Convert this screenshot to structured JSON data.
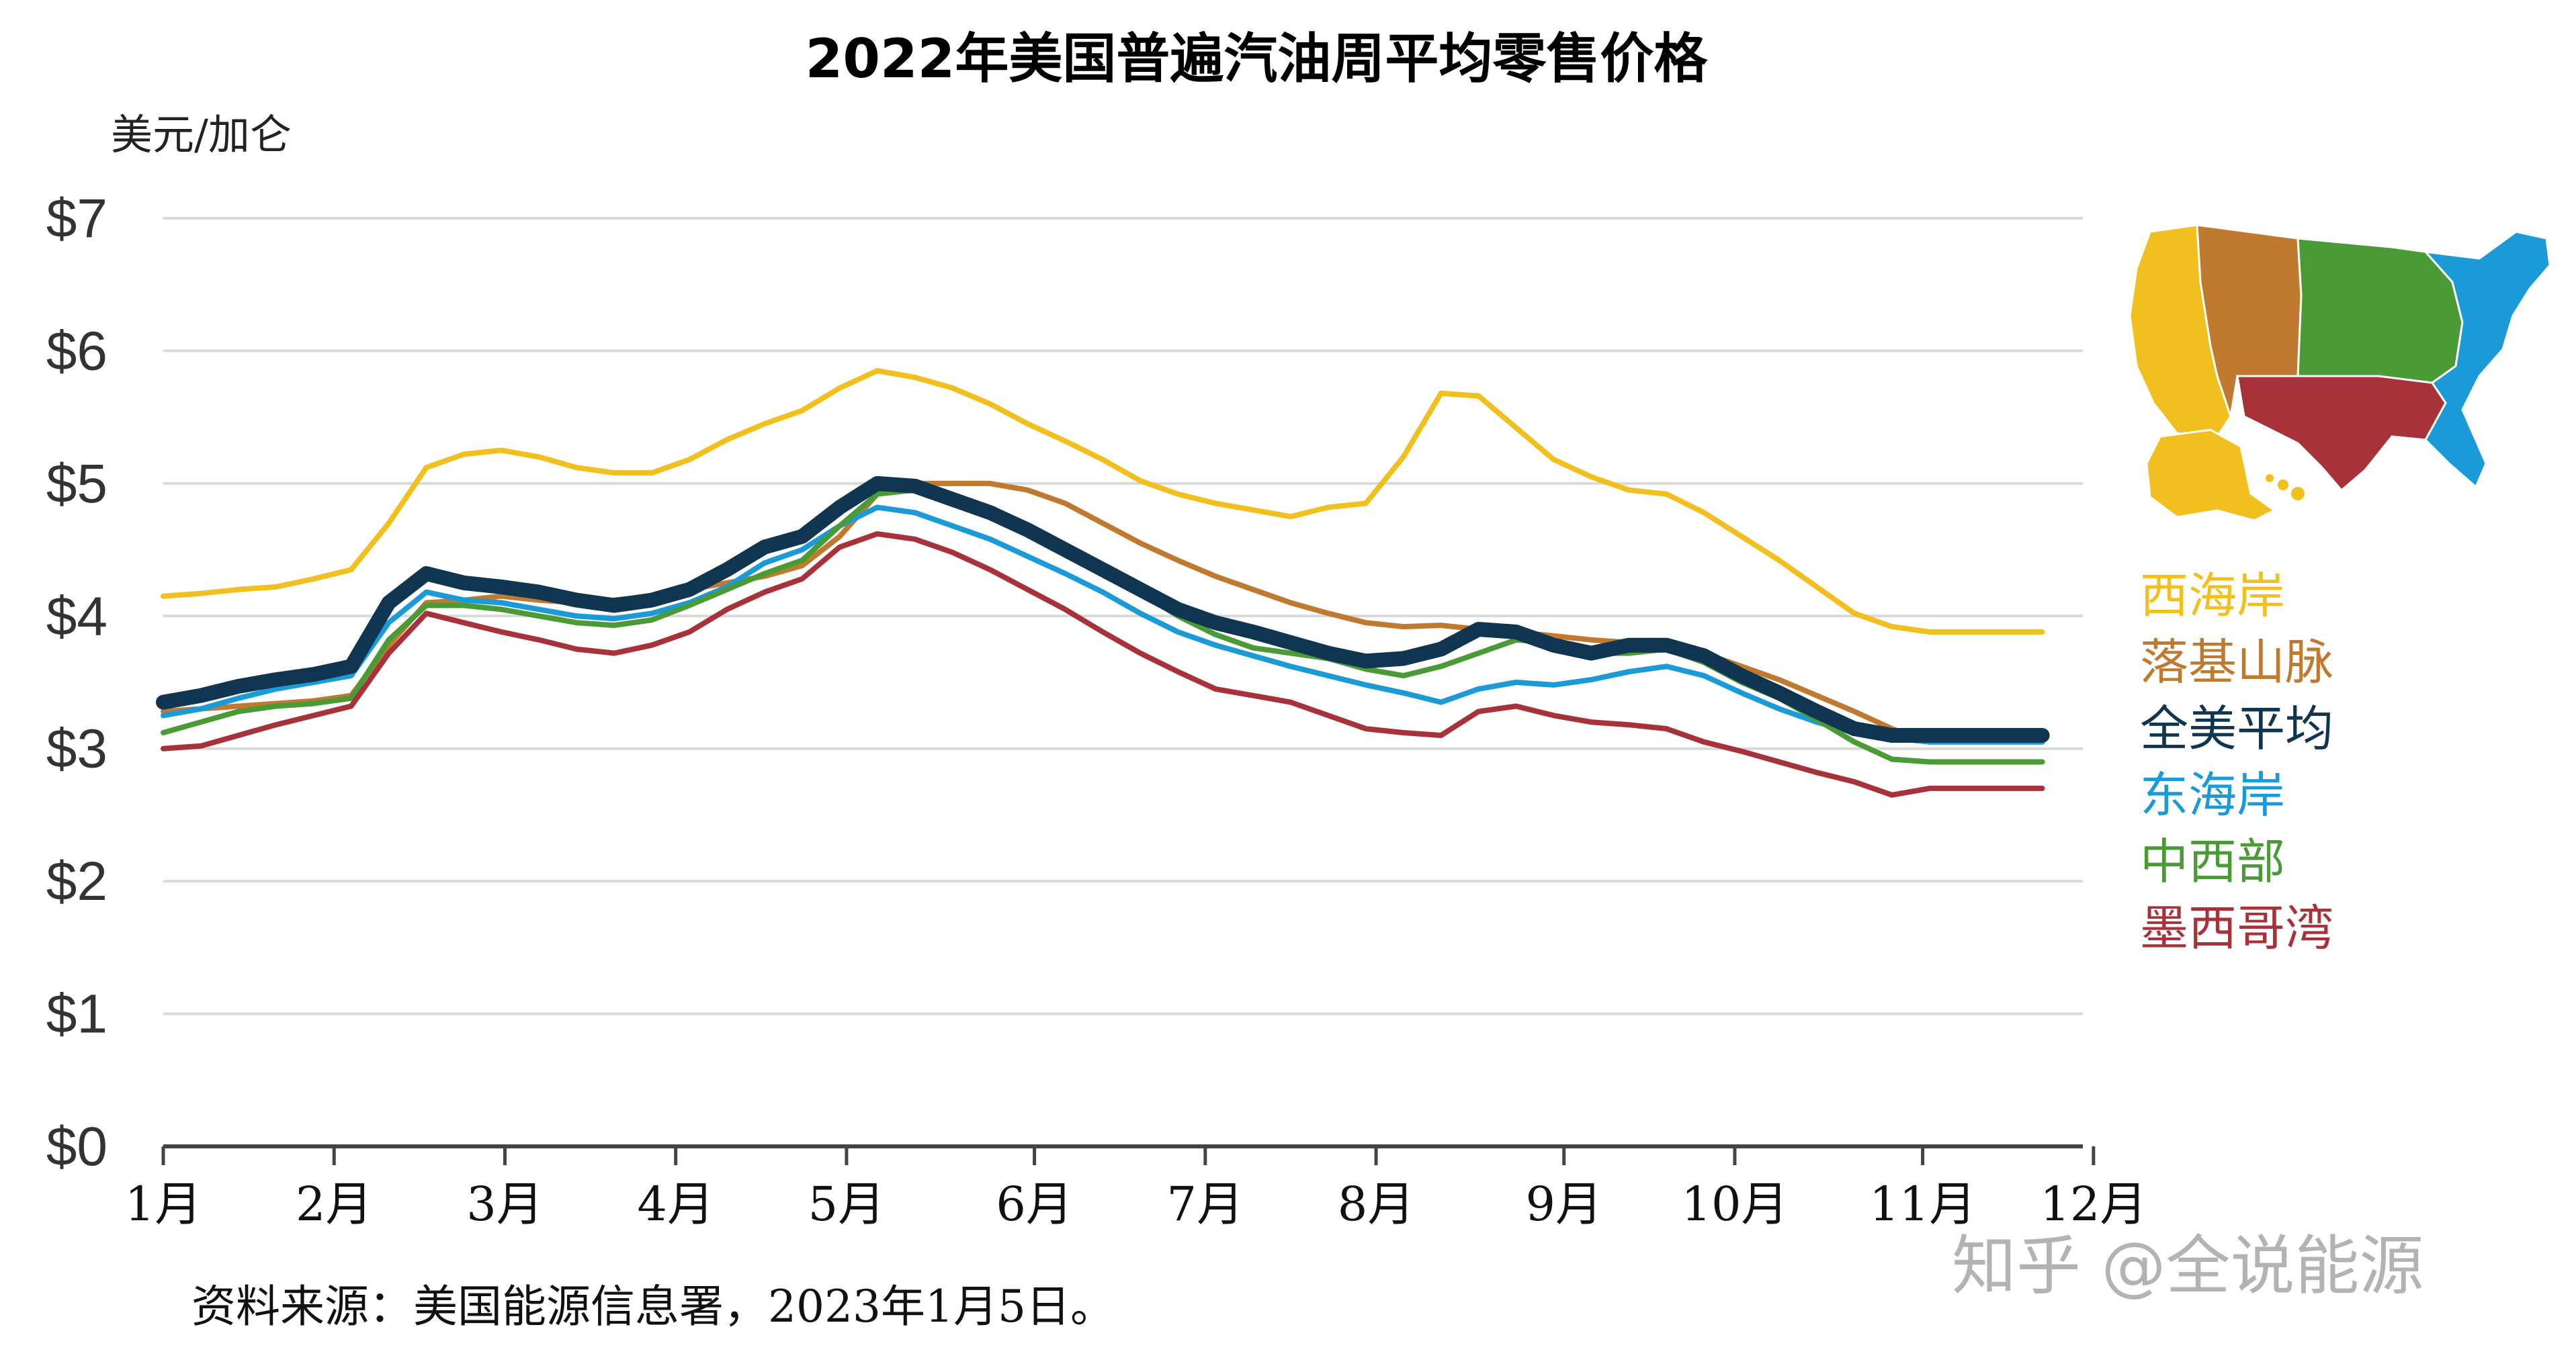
{
  "page": {
    "title": "2022年美国普遍汽油周平均零售价格",
    "unit_label": "美元/加仑",
    "source": "资料来源：美国能源信息署，2023年1月5日。",
    "watermark": "知乎 @全说能源"
  },
  "chart_data": {
    "type": "line",
    "title": "2022年美国普遍汽油周平均零售价格",
    "ylabel": "美元/加仑",
    "xlabel": "",
    "ylim": [
      0,
      7
    ],
    "xlim": [
      0,
      11.1
    ],
    "grid": true,
    "legend_position": "right",
    "yticks": [
      {
        "value": 0,
        "label": "$0"
      },
      {
        "value": 1,
        "label": "$1"
      },
      {
        "value": 2,
        "label": "$2"
      },
      {
        "value": 3,
        "label": "$3"
      },
      {
        "value": 4,
        "label": "$4"
      },
      {
        "value": 5,
        "label": "$5"
      },
      {
        "value": 6,
        "label": "$6"
      },
      {
        "value": 7,
        "label": "$7"
      }
    ],
    "xticks": [
      {
        "value": 0,
        "label": "1月"
      },
      {
        "value": 1,
        "label": "2月"
      },
      {
        "value": 2,
        "label": "3月"
      },
      {
        "value": 3,
        "label": "4月"
      },
      {
        "value": 4,
        "label": "5月"
      },
      {
        "value": 5.1,
        "label": "6月"
      },
      {
        "value": 6.1,
        "label": "7月"
      },
      {
        "value": 7.1,
        "label": "8月"
      },
      {
        "value": 8.2,
        "label": "9月"
      },
      {
        "value": 9.2,
        "label": "10月"
      },
      {
        "value": 10.3,
        "label": "11月"
      },
      {
        "value": 11.3,
        "label": "12月"
      }
    ],
    "x": [
      0,
      0.22,
      0.44,
      0.66,
      0.88,
      1.1,
      1.32,
      1.54,
      1.76,
      1.98,
      2.2,
      2.42,
      2.64,
      2.86,
      3.08,
      3.3,
      3.52,
      3.74,
      3.96,
      4.18,
      4.4,
      4.62,
      4.84,
      5.06,
      5.28,
      5.5,
      5.72,
      5.94,
      6.16,
      6.38,
      6.6,
      6.82,
      7.04,
      7.26,
      7.48,
      7.7,
      7.92,
      8.14,
      8.36,
      8.58,
      8.8,
      9.02,
      9.24,
      9.46,
      9.68,
      9.9,
      10.12,
      10.34,
      10.56,
      10.78,
      11.0
    ],
    "series": [
      {
        "name": "西海岸",
        "color": "#f2c01e",
        "width": 8,
        "values": [
          4.15,
          4.17,
          4.2,
          4.22,
          4.28,
          4.35,
          4.7,
          5.12,
          5.22,
          5.25,
          5.2,
          5.12,
          5.08,
          5.08,
          5.18,
          5.33,
          5.45,
          5.55,
          5.72,
          5.85,
          5.8,
          5.72,
          5.6,
          5.45,
          5.32,
          5.18,
          5.02,
          4.92,
          4.85,
          4.8,
          4.75,
          4.82,
          4.85,
          5.2,
          5.68,
          5.66,
          5.42,
          5.18,
          5.05,
          4.95,
          4.92,
          4.78,
          4.6,
          4.42,
          4.22,
          4.02,
          3.92,
          3.88,
          3.88,
          3.88,
          3.88
        ]
      },
      {
        "name": "落基山脉",
        "color": "#c07a30",
        "width": 8,
        "values": [
          3.28,
          3.3,
          3.32,
          3.34,
          3.36,
          3.4,
          3.78,
          4.1,
          4.12,
          4.15,
          4.12,
          4.1,
          4.12,
          4.15,
          4.2,
          4.25,
          4.3,
          4.38,
          4.6,
          4.92,
          5.0,
          5.0,
          5.0,
          4.95,
          4.85,
          4.7,
          4.55,
          4.42,
          4.3,
          4.2,
          4.1,
          4.02,
          3.95,
          3.92,
          3.93,
          3.9,
          3.88,
          3.85,
          3.82,
          3.8,
          3.78,
          3.72,
          3.62,
          3.52,
          3.4,
          3.28,
          3.15,
          3.05,
          3.05,
          3.05,
          3.05
        ]
      },
      {
        "name": "东海岸",
        "color": "#1a9ad6",
        "width": 8,
        "values": [
          3.25,
          3.3,
          3.38,
          3.45,
          3.5,
          3.55,
          3.95,
          4.18,
          4.12,
          4.1,
          4.05,
          4.0,
          3.98,
          4.02,
          4.1,
          4.22,
          4.4,
          4.5,
          4.68,
          4.82,
          4.78,
          4.68,
          4.58,
          4.45,
          4.32,
          4.18,
          4.02,
          3.88,
          3.78,
          3.7,
          3.62,
          3.55,
          3.48,
          3.42,
          3.35,
          3.45,
          3.5,
          3.48,
          3.52,
          3.58,
          3.62,
          3.55,
          3.42,
          3.3,
          3.2,
          3.12,
          3.08,
          3.05,
          3.05,
          3.05,
          3.05
        ]
      },
      {
        "name": "中西部",
        "color": "#4a9a35",
        "width": 8,
        "values": [
          3.12,
          3.2,
          3.28,
          3.32,
          3.34,
          3.38,
          3.82,
          4.08,
          4.08,
          4.05,
          4.0,
          3.95,
          3.93,
          3.97,
          4.08,
          4.2,
          4.32,
          4.42,
          4.68,
          4.92,
          4.95,
          4.88,
          4.76,
          4.62,
          4.48,
          4.32,
          4.18,
          4.0,
          3.86,
          3.76,
          3.72,
          3.68,
          3.6,
          3.55,
          3.62,
          3.72,
          3.82,
          3.8,
          3.72,
          3.72,
          3.75,
          3.65,
          3.5,
          3.38,
          3.22,
          3.05,
          2.92,
          2.9,
          2.9,
          2.9,
          2.9
        ]
      },
      {
        "name": "墨西哥湾",
        "color": "#a8323a",
        "width": 8,
        "values": [
          3.0,
          3.02,
          3.1,
          3.18,
          3.25,
          3.32,
          3.72,
          4.02,
          3.95,
          3.88,
          3.82,
          3.75,
          3.72,
          3.78,
          3.88,
          4.05,
          4.18,
          4.28,
          4.52,
          4.62,
          4.58,
          4.48,
          4.35,
          4.2,
          4.05,
          3.88,
          3.72,
          3.58,
          3.45,
          3.4,
          3.35,
          3.25,
          3.15,
          3.12,
          3.1,
          3.28,
          3.32,
          3.25,
          3.2,
          3.18,
          3.15,
          3.05,
          2.98,
          2.9,
          2.82,
          2.75,
          2.65,
          2.7,
          2.7,
          2.7,
          2.7
        ]
      },
      {
        "name": "全美平均",
        "color": "#0f3550",
        "width": 22,
        "values": [
          3.35,
          3.4,
          3.47,
          3.52,
          3.56,
          3.62,
          4.1,
          4.32,
          4.25,
          4.22,
          4.18,
          4.12,
          4.08,
          4.12,
          4.2,
          4.35,
          4.52,
          4.6,
          4.82,
          5.0,
          4.98,
          4.88,
          4.78,
          4.65,
          4.5,
          4.35,
          4.2,
          4.05,
          3.95,
          3.88,
          3.8,
          3.72,
          3.66,
          3.68,
          3.75,
          3.9,
          3.88,
          3.78,
          3.72,
          3.78,
          3.78,
          3.7,
          3.55,
          3.42,
          3.28,
          3.15,
          3.1,
          3.1,
          3.1,
          3.1,
          3.1
        ]
      }
    ],
    "legend": [
      {
        "label": "西海岸",
        "color": "#f2c01e"
      },
      {
        "label": "落基山脉",
        "color": "#c07a30"
      },
      {
        "label": "全美平均",
        "color": "#0f3550"
      },
      {
        "label": "东海岸",
        "color": "#1a9ad6"
      },
      {
        "label": "中西部",
        "color": "#4a9a35"
      },
      {
        "label": "墨西哥湾",
        "color": "#a8323a"
      }
    ],
    "map_regions": [
      {
        "name": "西海岸",
        "color": "#f2c01e"
      },
      {
        "name": "落基山脉",
        "color": "#c07a30"
      },
      {
        "name": "中西部",
        "color": "#4a9a35"
      },
      {
        "name": "墨西哥湾",
        "color": "#a8323a"
      },
      {
        "name": "东海岸",
        "color": "#1a9ad6"
      }
    ]
  }
}
